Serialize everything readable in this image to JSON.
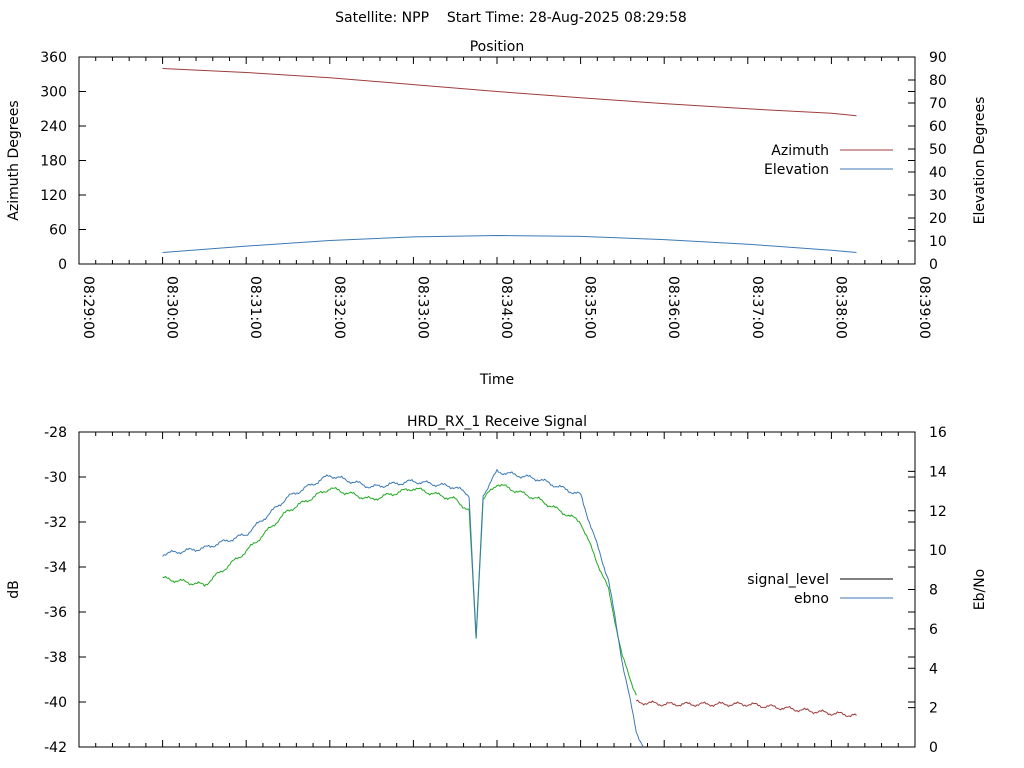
{
  "header": {
    "title": "Satellite: NPP    Start Time: 28-Aug-2025 08:29:58"
  },
  "chart_data": [
    {
      "type": "line",
      "title": "Position",
      "xlabel": "Time",
      "ylabel": "Azimuth Degrees",
      "y2label": "Elevation Degrees",
      "x_ticks": [
        "08:29:00",
        "08:30:00",
        "08:31:00",
        "08:32:00",
        "08:33:00",
        "08:34:00",
        "08:35:00",
        "08:36:00",
        "08:37:00",
        "08:38:00",
        "08:39:00"
      ],
      "x_range_seconds": [
        0,
        600
      ],
      "ylim": [
        0,
        360
      ],
      "yticks": [
        0,
        60,
        120,
        180,
        240,
        300,
        360
      ],
      "y2lim": [
        0,
        90
      ],
      "y2ticks": [
        0,
        10,
        20,
        30,
        40,
        50,
        60,
        70,
        80,
        90
      ],
      "legend_position": "right",
      "series": [
        {
          "name": "Azimuth",
          "axis": "y",
          "color": "#a03c3c",
          "t": [
            "08:30:00",
            "08:31:00",
            "08:32:00",
            "08:33:00",
            "08:34:00",
            "08:35:00",
            "08:36:00",
            "08:37:00",
            "08:38:00",
            "08:38:18"
          ],
          "values": [
            340,
            333,
            324,
            312,
            300,
            289,
            279,
            270,
            262,
            258
          ]
        },
        {
          "name": "Elevation",
          "axis": "y2",
          "color": "#3c7ab4",
          "t": [
            "08:30:00",
            "08:31:00",
            "08:32:00",
            "08:33:00",
            "08:34:00",
            "08:35:00",
            "08:36:00",
            "08:37:00",
            "08:38:00",
            "08:38:18"
          ],
          "values": [
            5,
            7.8,
            10.2,
            11.8,
            12.4,
            12,
            10.6,
            8.6,
            6,
            5
          ]
        }
      ]
    },
    {
      "type": "line",
      "title": "HRD_RX_1 Receive Signal",
      "ylabel": "dB",
      "y2label": "Eb/No",
      "x_range_seconds": [
        0,
        600
      ],
      "ylim": [
        -42,
        -28
      ],
      "yticks": [
        -42,
        -40,
        -38,
        -36,
        -34,
        -32,
        -30,
        -28
      ],
      "y2lim": [
        0,
        16
      ],
      "y2ticks": [
        0,
        2,
        4,
        6,
        8,
        10,
        12,
        14,
        16
      ],
      "legend_position": "right",
      "legend": [
        {
          "name": "signal_level",
          "color": "#000000"
        },
        {
          "name": "ebno",
          "color": "#3c7ab4"
        }
      ],
      "series": [
        {
          "name": "",
          "axis": "y",
          "color": "#22aa22",
          "t": [
            "08:30:00",
            "08:30:30",
            "08:31:00",
            "08:31:30",
            "08:32:00",
            "08:32:30",
            "08:33:00",
            "08:33:30",
            "08:33:40",
            "08:33:45",
            "08:33:50",
            "08:34:00",
            "08:34:30",
            "08:35:00",
            "08:35:20",
            "08:35:30",
            "08:35:40"
          ],
          "values": [
            -34.5,
            -34.8,
            -33.3,
            -31.5,
            -30.5,
            -31,
            -30.5,
            -31,
            -31.5,
            -37.2,
            -31.0,
            -30.3,
            -31,
            -32,
            -35.0,
            -38.0,
            -39.7
          ]
        },
        {
          "name": "",
          "axis": "y",
          "color": "#a03c3c",
          "t": [
            "08:35:40",
            "08:36:00",
            "08:36:30",
            "08:37:00",
            "08:37:30",
            "08:38:00",
            "08:38:18"
          ],
          "values": [
            -40.0,
            -40.1,
            -40.1,
            -40.1,
            -40.3,
            -40.5,
            -40.6
          ]
        },
        {
          "name": "",
          "axis": "y2",
          "color": "#3c7ab4",
          "t": [
            "08:30:00",
            "08:30:30",
            "08:31:00",
            "08:31:30",
            "08:32:00",
            "08:32:30",
            "08:33:00",
            "08:33:30",
            "08:33:40",
            "08:33:45",
            "08:33:50",
            "08:34:00",
            "08:34:30",
            "08:35:00",
            "08:35:20",
            "08:35:30",
            "08:35:40",
            "08:35:45"
          ],
          "values": [
            9.8,
            10.1,
            10.8,
            12.7,
            13.8,
            13.2,
            13.5,
            13.2,
            12.8,
            5.5,
            12.8,
            14.0,
            13.6,
            12.8,
            8.5,
            4.3,
            0.8,
            0
          ]
        }
      ]
    }
  ]
}
